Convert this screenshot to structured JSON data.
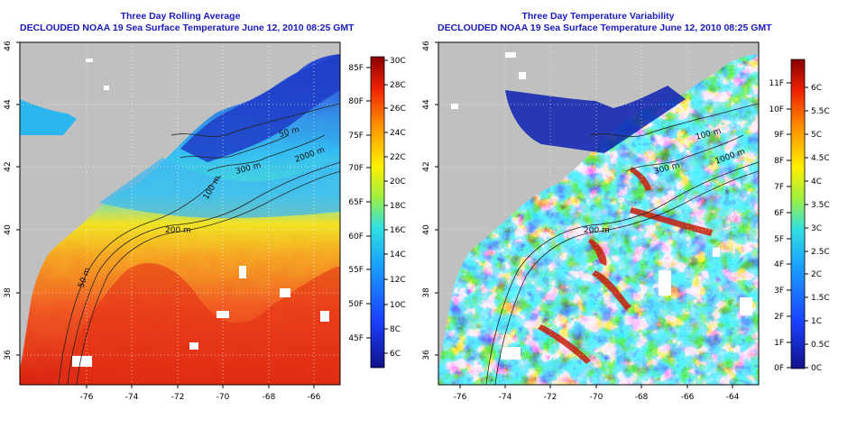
{
  "left": {
    "title": "Three Day Rolling Average",
    "subtitle": "DECLOUDED NOAA 19 Sea Surface Temperature June 12, 2010 08:25 GMT",
    "colorbar_f": [
      "85F",
      "80F",
      "75F",
      "70F",
      "65F",
      "60F",
      "55F",
      "50F",
      "45F"
    ],
    "colorbar_c": [
      "30C",
      "28C",
      "26C",
      "24C",
      "22C",
      "20C",
      "18C",
      "16C",
      "14C",
      "12C",
      "10C",
      "8C",
      "6C"
    ],
    "contours": [
      "50 m",
      "200 m",
      "300 m",
      "2000 m",
      "100 m",
      "50 m"
    ]
  },
  "right": {
    "title": "Three Day Temperature Variability",
    "subtitle": "DECLOUDED NOAA 19 Sea Surface Temperature June 12, 2010 08:25 GMT",
    "colorbar_f": [
      "11F",
      "10F",
      "9F",
      "8F",
      "7F",
      "6F",
      "5F",
      "4F",
      "3F",
      "2F",
      "1F",
      "0F"
    ],
    "colorbar_c": [
      "6C",
      "5.5C",
      "5C",
      "4.5C",
      "4C",
      "3.5C",
      "3C",
      "2.5C",
      "2C",
      "1.5C",
      "1C",
      "0.5C",
      "0C"
    ],
    "contours": [
      "200 m",
      "300 m",
      "1000 m",
      "100 m"
    ]
  },
  "axes": {
    "x_ticks": [
      "-76",
      "-74",
      "-72",
      "-70",
      "-68",
      "-66",
      "-64"
    ],
    "y_ticks": [
      "36",
      "38",
      "40",
      "42",
      "44",
      "46"
    ]
  }
}
